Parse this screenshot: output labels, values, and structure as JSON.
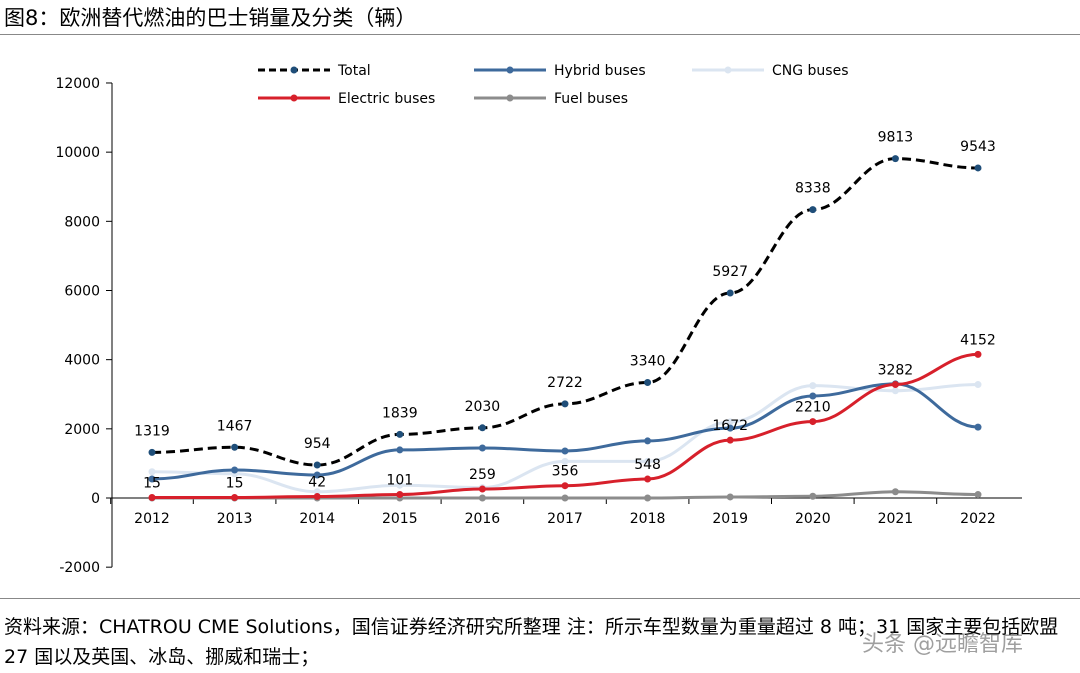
{
  "title": "图8：欧洲替代燃油的巴士销量及分类（辆）",
  "source": "资料来源：CHATROU CME Solutions，国信证券经济研究所整理 注：所示车型数量为重量超过 8 吨；31 国家主要包括欧盟 27 国以及英国、冰岛、挪威和瑞士；",
  "watermark": "头条 @远瞻智库",
  "chart_data": {
    "type": "line",
    "categories": [
      "2012",
      "2013",
      "2014",
      "2015",
      "2016",
      "2017",
      "2018",
      "2019",
      "2020",
      "2021",
      "2022"
    ],
    "ylim": [
      -2000,
      12000
    ],
    "yticks": [
      -2000,
      0,
      2000,
      4000,
      6000,
      8000,
      10000,
      12000
    ],
    "grid": false,
    "legend": "top",
    "series": [
      {
        "name": "Total",
        "color": "#000000",
        "dash": true,
        "marker": "#1f4e79",
        "values": [
          1319,
          1467,
          954,
          1839,
          2030,
          2722,
          3340,
          5927,
          8338,
          9813,
          9543
        ],
        "labels": true
      },
      {
        "name": "Hybrid buses",
        "color": "#3e6a9c",
        "values": [
          550,
          810,
          665,
          1390,
          1445,
          1360,
          1650,
          2020,
          2950,
          3300,
          2050
        ]
      },
      {
        "name": "CNG buses",
        "color": "#dbe5f1",
        "values": [
          760,
          700,
          180,
          370,
          300,
          1060,
          1060,
          2200,
          3250,
          3100,
          3280
        ]
      },
      {
        "name": "Electric buses",
        "color": "#d7202b",
        "values": [
          15,
          15,
          42,
          101,
          259,
          356,
          548,
          1672,
          2210,
          3282,
          4152
        ],
        "labels": true
      },
      {
        "name": "Fuel buses",
        "color": "#8c8c8c",
        "values": [
          0,
          0,
          0,
          0,
          0,
          0,
          0,
          30,
          50,
          180,
          100
        ]
      }
    ]
  }
}
